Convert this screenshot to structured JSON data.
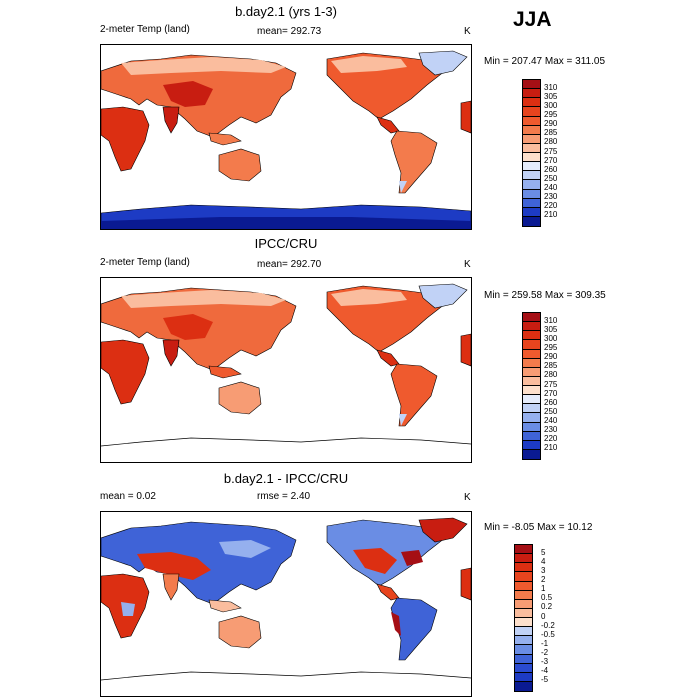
{
  "season": "JJA",
  "panels": [
    {
      "title": "b.day2.1 (yrs 1-3)",
      "left_label": "2-meter Temp (land)",
      "center_label": "mean= 292.73",
      "units": "K",
      "minmax": "Min = 207.47 Max = 311.05",
      "legend_labels": [
        "310",
        "305",
        "300",
        "295",
        "290",
        "285",
        "280",
        "275",
        "270",
        "260",
        "250",
        "240",
        "230",
        "220",
        "210"
      ],
      "legend_colors": [
        "#a50f15",
        "#c81d11",
        "#dc2f12",
        "#e7441e",
        "#ef5a2e",
        "#f37b4c",
        "#f79c74",
        "#fabd9e",
        "#fde0cc",
        "#e5ecfb",
        "#c1d2f6",
        "#95b0ee",
        "#6a8de4",
        "#3f63d7",
        "#1d3bc4",
        "#0a1a92"
      ]
    },
    {
      "title": "IPCC/CRU",
      "left_label": "2-meter Temp (land)",
      "center_label": "mean= 292.70",
      "units": "K",
      "minmax": "Min = 259.58 Max = 309.35",
      "legend_labels": [
        "310",
        "305",
        "300",
        "295",
        "290",
        "285",
        "280",
        "275",
        "270",
        "260",
        "250",
        "240",
        "230",
        "220",
        "210"
      ],
      "legend_colors": [
        "#a50f15",
        "#c81d11",
        "#dc2f12",
        "#e7441e",
        "#ef5a2e",
        "#f37b4c",
        "#f79c74",
        "#fabd9e",
        "#fde0cc",
        "#e5ecfb",
        "#c1d2f6",
        "#95b0ee",
        "#6a8de4",
        "#3f63d7",
        "#1d3bc4",
        "#0a1a92"
      ]
    },
    {
      "title": "b.day2.1 - IPCC/CRU",
      "left_label": "mean =   0.02",
      "center_label": "rmse =   2.40",
      "units": "K",
      "minmax": "Min =  -8.05 Max =  10.12",
      "legend_labels": [
        "5",
        "4",
        "3",
        "2",
        "1",
        "0.5",
        "0.2",
        "0",
        "-0.2",
        "-0.5",
        "-1",
        "-2",
        "-3",
        "-4",
        "-5"
      ],
      "legend_colors": [
        "#a50f15",
        "#c81d11",
        "#dc2f12",
        "#e7441e",
        "#ef5a2e",
        "#f37b4c",
        "#f79c74",
        "#fabd9e",
        "#fde0cc",
        "#c1d2f6",
        "#95b0ee",
        "#6a8de4",
        "#3f63d7",
        "#2a4bd0",
        "#1d3bc4",
        "#0a1a92"
      ]
    }
  ]
}
